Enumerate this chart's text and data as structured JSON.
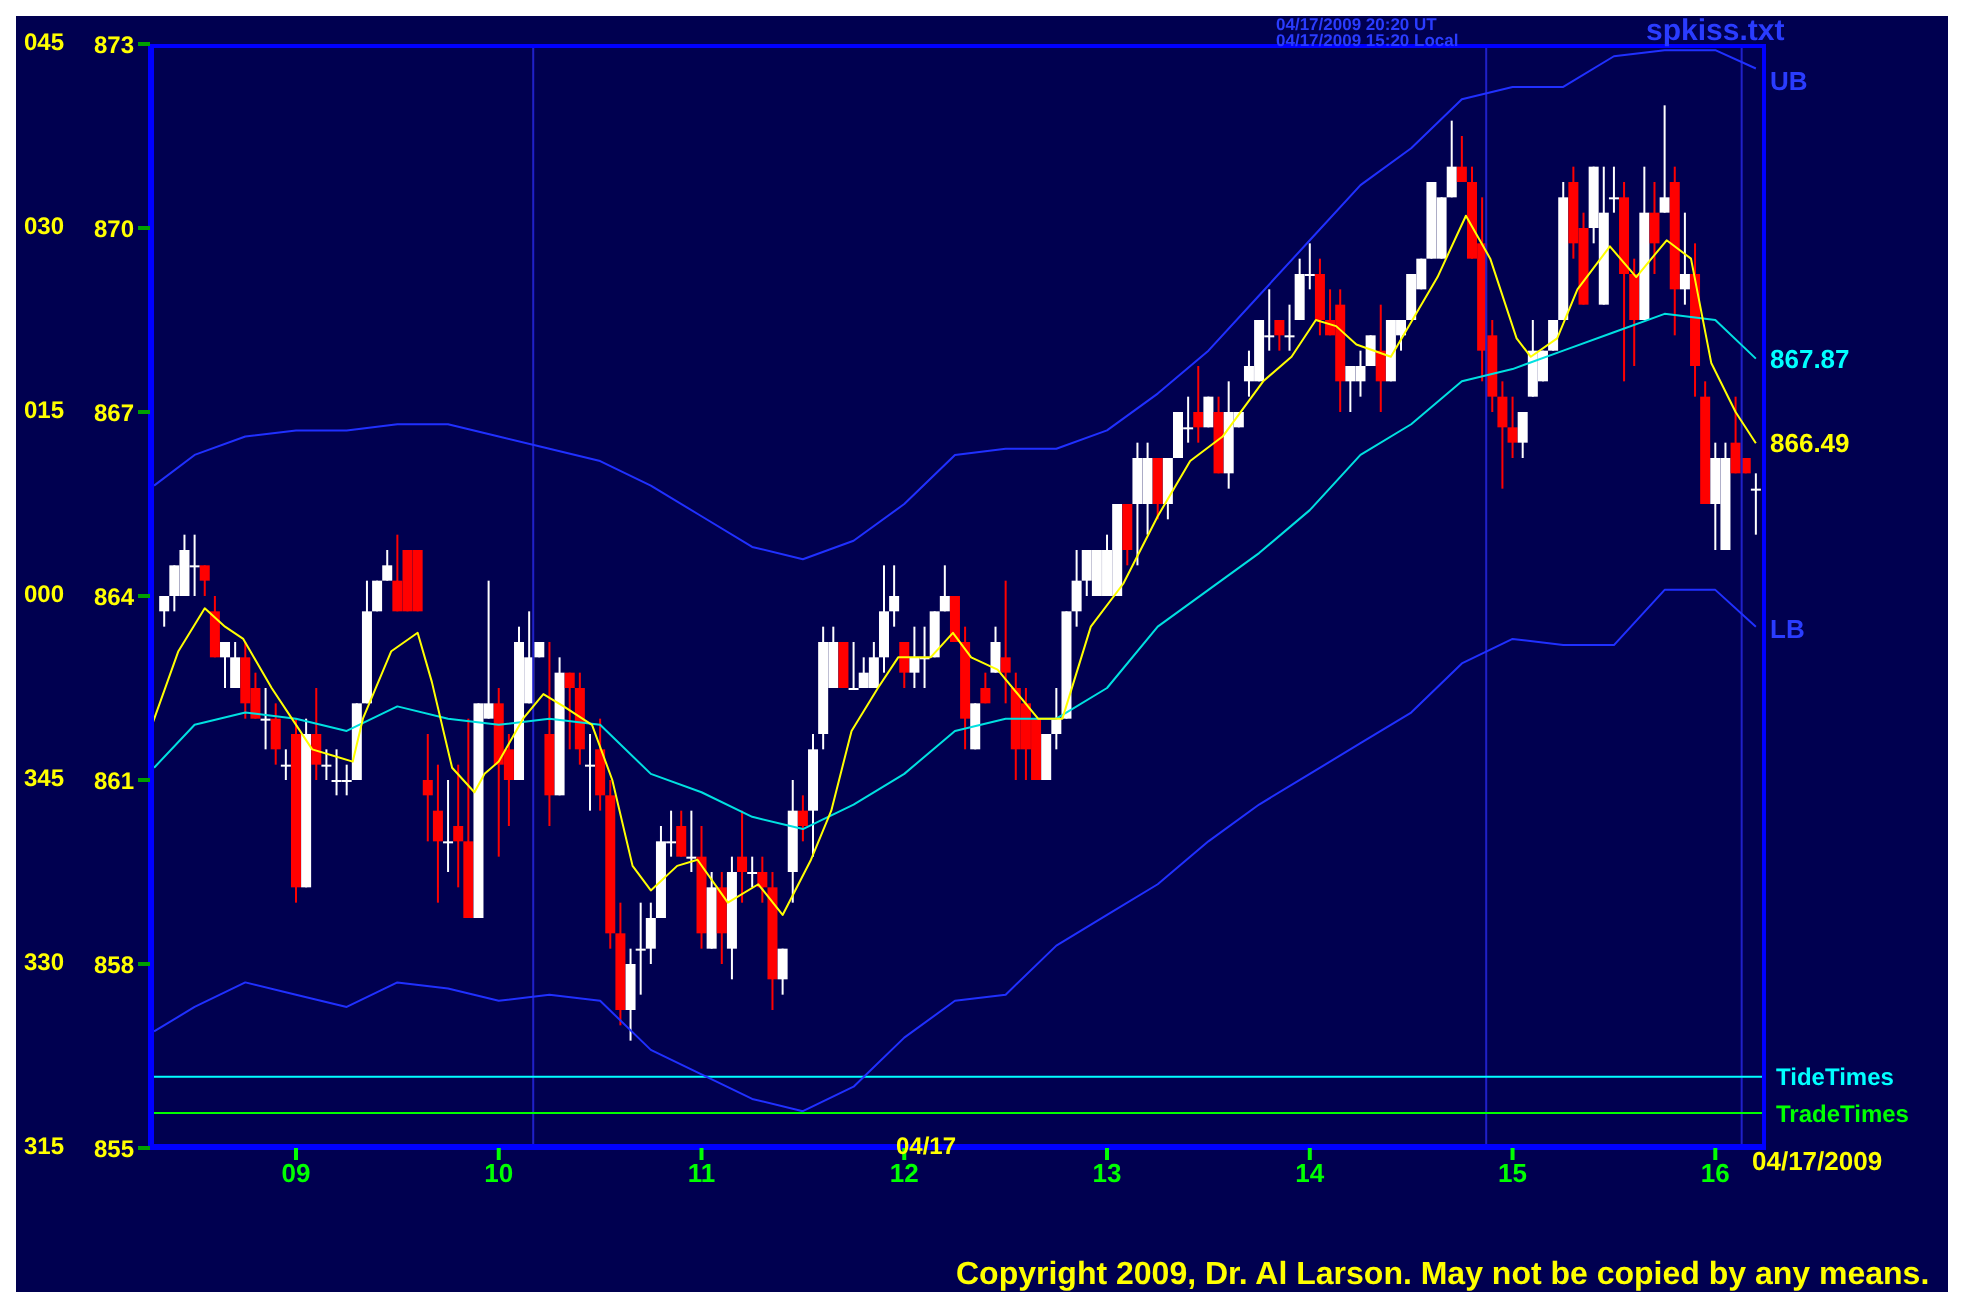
{
  "chart_data": {
    "type": "candlestick",
    "x": [
      8.35,
      8.4,
      8.45,
      8.5,
      8.55,
      8.6,
      8.65,
      8.7,
      8.75,
      8.8,
      8.85,
      8.9,
      8.95,
      9,
      9.05,
      9.1,
      9.15,
      9.2,
      9.25,
      9.3,
      9.35,
      9.4,
      9.45,
      9.5,
      9.55,
      9.6,
      9.65,
      9.7,
      9.75,
      9.8,
      9.85,
      9.9,
      9.95,
      10,
      10.05,
      10.1,
      10.15,
      10.2,
      10.25,
      10.3,
      10.35,
      10.4,
      10.45,
      10.5,
      10.55,
      10.6,
      10.65,
      10.7,
      10.75,
      10.8,
      10.85,
      10.9,
      10.95,
      11,
      11.05,
      11.1,
      11.15,
      11.2,
      11.25,
      11.3,
      11.35,
      11.4,
      11.45,
      11.5,
      11.55,
      11.6,
      11.65,
      11.7,
      11.75,
      11.8,
      11.85,
      11.9,
      11.95,
      12,
      12.05,
      12.1,
      12.15,
      12.2,
      12.25,
      12.3,
      12.35,
      12.4,
      12.45,
      12.5,
      12.55,
      12.6,
      12.65,
      12.7,
      12.75,
      12.8,
      12.85,
      12.9,
      12.95,
      13,
      13.05,
      13.1,
      13.15,
      13.2,
      13.25,
      13.3,
      13.35,
      13.4,
      13.45,
      13.5,
      13.55,
      13.6,
      13.65,
      13.7,
      13.75,
      13.8,
      13.85,
      13.9,
      13.95,
      14,
      14.05,
      14.1,
      14.15,
      14.2,
      14.25,
      14.3,
      14.35,
      14.4,
      14.45,
      14.5,
      14.55,
      14.6,
      14.65,
      14.7,
      14.75,
      14.8,
      14.85,
      14.9,
      14.95,
      15,
      15.05,
      15.1,
      15.15,
      15.2,
      15.25,
      15.3,
      15.35,
      15.4,
      15.45,
      15.5,
      15.55,
      15.6,
      15.65,
      15.7,
      15.75,
      15.8,
      15.85,
      15.9,
      15.95,
      16,
      16.05,
      16.1,
      16.15,
      16.2
    ],
    "ohlc": [
      [
        863.75,
        864.0,
        863.5,
        864.0
      ],
      [
        864.0,
        864.5,
        863.75,
        864.5
      ],
      [
        864.0,
        865.0,
        864.0,
        864.75
      ],
      [
        864.5,
        865.0,
        864.0,
        864.5
      ],
      [
        864.5,
        864.5,
        864.0,
        864.25
      ],
      [
        863.75,
        864.0,
        863.0,
        863.0
      ],
      [
        863.0,
        863.25,
        862.5,
        863.25
      ],
      [
        862.5,
        863.25,
        862.5,
        863.0
      ],
      [
        863.0,
        863.25,
        862.0,
        862.25
      ],
      [
        862.5,
        862.75,
        862.0,
        862.0
      ],
      [
        862.0,
        862.5,
        861.5,
        862.0
      ],
      [
        862.0,
        862.25,
        861.25,
        861.5
      ],
      [
        861.25,
        861.5,
        861.0,
        861.25
      ],
      [
        861.75,
        862.0,
        859.0,
        859.25
      ],
      [
        859.25,
        862.0,
        859.25,
        861.75
      ],
      [
        861.75,
        862.5,
        861.0,
        861.25
      ],
      [
        861.25,
        861.5,
        861.0,
        861.25
      ],
      [
        861.0,
        861.5,
        860.75,
        861.0
      ],
      [
        861.0,
        861.25,
        860.75,
        861.0
      ],
      [
        861.0,
        862.25,
        861.0,
        862.25
      ],
      [
        862.25,
        864.25,
        862.25,
        863.75
      ],
      [
        863.75,
        864.25,
        863.75,
        864.25
      ],
      [
        864.25,
        864.75,
        864.25,
        864.5
      ],
      [
        864.25,
        865.0,
        863.75,
        863.75
      ],
      [
        864.75,
        864.75,
        863.75,
        863.75
      ],
      [
        864.75,
        864.75,
        863.75,
        863.75
      ],
      [
        861.0,
        861.75,
        860.0,
        860.75
      ],
      [
        860.5,
        861.25,
        859.0,
        860.0
      ],
      [
        860.0,
        861.0,
        859.5,
        860.0
      ],
      [
        860.25,
        861.25,
        859.25,
        860.0
      ],
      [
        860.0,
        862.0,
        858.75,
        858.75
      ],
      [
        858.75,
        862.25,
        858.75,
        862.25
      ],
      [
        862.0,
        864.25,
        862.0,
        862.25
      ],
      [
        862.25,
        862.5,
        859.75,
        861.25
      ],
      [
        861.5,
        861.75,
        860.25,
        861.0
      ],
      [
        861.0,
        863.5,
        861.0,
        863.25
      ],
      [
        862.25,
        863.75,
        862.25,
        863.0
      ],
      [
        863.0,
        863.25,
        863.0,
        863.25
      ],
      [
        861.75,
        863.25,
        860.25,
        860.75
      ],
      [
        860.75,
        863.0,
        860.75,
        862.75
      ],
      [
        862.75,
        862.75,
        861.5,
        862.5
      ],
      [
        862.5,
        862.75,
        861.25,
        861.5
      ],
      [
        861.25,
        861.75,
        860.5,
        861.25
      ],
      [
        861.5,
        862.0,
        860.5,
        860.75
      ],
      [
        860.75,
        861.0,
        858.25,
        858.5
      ],
      [
        858.5,
        859.0,
        857.0,
        857.25
      ],
      [
        857.25,
        858.25,
        856.75,
        858.0
      ],
      [
        858.25,
        859.0,
        857.5,
        858.25
      ],
      [
        858.25,
        859.0,
        858.0,
        858.75
      ],
      [
        858.75,
        860.25,
        858.75,
        860.0
      ],
      [
        860.0,
        860.5,
        859.75,
        860.0
      ],
      [
        860.25,
        860.5,
        859.75,
        859.75
      ],
      [
        859.75,
        860.5,
        859.5,
        859.75
      ],
      [
        859.75,
        860.25,
        858.25,
        858.5
      ],
      [
        858.25,
        859.5,
        858.25,
        859.25
      ],
      [
        859.25,
        859.5,
        858.0,
        858.5
      ],
      [
        858.25,
        859.75,
        857.75,
        859.5
      ],
      [
        859.75,
        860.5,
        859.0,
        859.5
      ],
      [
        859.5,
        859.75,
        859.25,
        859.5
      ],
      [
        859.5,
        859.75,
        859.0,
        859.25
      ],
      [
        859.25,
        859.5,
        857.25,
        857.75
      ],
      [
        857.75,
        858.25,
        857.5,
        858.25
      ],
      [
        859.5,
        861.0,
        859.0,
        860.5
      ],
      [
        860.5,
        860.75,
        860.0,
        860.25
      ],
      [
        860.5,
        861.75,
        859.75,
        861.5
      ],
      [
        861.75,
        863.5,
        861.5,
        863.25
      ],
      [
        862.5,
        863.5,
        862.5,
        863.25
      ],
      [
        863.25,
        863.25,
        862.5,
        862.5
      ],
      [
        862.5,
        863.25,
        862.5,
        862.5
      ],
      [
        862.5,
        863.0,
        862.5,
        862.75
      ],
      [
        862.5,
        863.25,
        862.5,
        863.0
      ],
      [
        863.0,
        864.5,
        862.75,
        863.75
      ],
      [
        863.75,
        864.5,
        863.5,
        864.0
      ],
      [
        863.25,
        863.25,
        862.5,
        862.75
      ],
      [
        862.75,
        863.5,
        862.5,
        863.0
      ],
      [
        863.0,
        863.5,
        862.5,
        863.0
      ],
      [
        863.0,
        863.75,
        863.0,
        863.75
      ],
      [
        863.75,
        864.5,
        863.75,
        864.0
      ],
      [
        864.0,
        864.0,
        863.25,
        863.25
      ],
      [
        863.25,
        863.5,
        861.5,
        862.0
      ],
      [
        861.5,
        862.25,
        861.5,
        862.25
      ],
      [
        862.5,
        862.75,
        862.25,
        862.25
      ],
      [
        862.75,
        863.5,
        862.75,
        863.25
      ],
      [
        863.0,
        864.25,
        862.25,
        862.75
      ],
      [
        862.5,
        862.75,
        861.0,
        861.5
      ],
      [
        862.25,
        862.5,
        861.0,
        861.5
      ],
      [
        862.0,
        862.0,
        861.0,
        861.0
      ],
      [
        861.0,
        861.75,
        861.0,
        861.75
      ],
      [
        861.75,
        862.5,
        861.5,
        862.0
      ],
      [
        862.0,
        863.75,
        862.0,
        863.75
      ],
      [
        863.75,
        864.75,
        863.5,
        864.25
      ],
      [
        864.25,
        864.75,
        864.0,
        864.75
      ],
      [
        864.0,
        864.75,
        864.0,
        864.75
      ],
      [
        864.0,
        865.0,
        864.0,
        864.75
      ],
      [
        864.0,
        865.5,
        864.0,
        865.5
      ],
      [
        865.5,
        865.5,
        864.5,
        864.75
      ],
      [
        865.5,
        866.5,
        864.5,
        866.25
      ],
      [
        865.5,
        866.5,
        865.0,
        866.25
      ],
      [
        866.25,
        866.25,
        865.25,
        865.5
      ],
      [
        865.5,
        866.25,
        865.25,
        866.25
      ],
      [
        866.25,
        867.0,
        866.25,
        867.0
      ],
      [
        866.75,
        867.25,
        866.5,
        866.75
      ],
      [
        867.0,
        867.75,
        866.5,
        866.75
      ],
      [
        866.75,
        867.25,
        866.75,
        867.25
      ],
      [
        867.0,
        867.25,
        866.0,
        866.0
      ],
      [
        866.0,
        867.5,
        865.75,
        867.0
      ],
      [
        866.75,
        867.0,
        866.75,
        867.0
      ],
      [
        867.5,
        868.0,
        867.25,
        867.75
      ],
      [
        867.5,
        868.5,
        867.5,
        868.5
      ],
      [
        868.25,
        869.0,
        868.0,
        868.25
      ],
      [
        868.5,
        868.5,
        868.0,
        868.25
      ],
      [
        868.25,
        868.75,
        868.0,
        868.25
      ],
      [
        868.5,
        869.5,
        868.5,
        869.25
      ],
      [
        869.25,
        869.75,
        869.0,
        869.25
      ],
      [
        869.25,
        869.5,
        868.25,
        868.5
      ],
      [
        868.5,
        869.0,
        868.25,
        868.25
      ],
      [
        868.75,
        869.0,
        867.0,
        867.5
      ],
      [
        867.5,
        867.75,
        867.0,
        867.75
      ],
      [
        867.5,
        868.0,
        867.25,
        867.75
      ],
      [
        867.75,
        868.25,
        867.75,
        868.25
      ],
      [
        868.0,
        868.75,
        867.0,
        867.5
      ],
      [
        867.5,
        868.5,
        867.5,
        868.5
      ],
      [
        868.25,
        868.5,
        868.0,
        868.5
      ],
      [
        868.5,
        869.25,
        868.5,
        869.25
      ],
      [
        869.0,
        869.5,
        869.0,
        869.5
      ],
      [
        869.5,
        870.75,
        869.5,
        870.75
      ],
      [
        869.5,
        870.5,
        869.5,
        870.5
      ],
      [
        870.5,
        871.75,
        870.5,
        871.0
      ],
      [
        871.0,
        871.5,
        870.75,
        870.75
      ],
      [
        870.75,
        871.0,
        869.5,
        869.5
      ],
      [
        869.75,
        870.5,
        867.5,
        868.0
      ],
      [
        868.25,
        868.5,
        867.0,
        867.25
      ],
      [
        867.25,
        867.5,
        865.75,
        866.75
      ],
      [
        866.75,
        867.25,
        866.25,
        866.5
      ],
      [
        866.5,
        867.0,
        866.25,
        867.0
      ],
      [
        867.25,
        868.5,
        867.25,
        868.0
      ],
      [
        867.5,
        868.0,
        867.5,
        868.0
      ],
      [
        868.0,
        868.5,
        868.0,
        868.5
      ],
      [
        868.5,
        870.75,
        868.5,
        870.5
      ],
      [
        870.75,
        871.0,
        869.5,
        869.75
      ],
      [
        870.0,
        870.25,
        868.75,
        868.75
      ],
      [
        870.0,
        871.0,
        869.75,
        871.0
      ],
      [
        868.75,
        871.0,
        868.75,
        870.25
      ],
      [
        870.5,
        871.0,
        870.25,
        870.5
      ],
      [
        870.5,
        870.75,
        867.5,
        869.25
      ],
      [
        869.25,
        869.5,
        867.75,
        868.5
      ],
      [
        868.5,
        871.0,
        868.5,
        870.25
      ],
      [
        870.25,
        870.75,
        869.25,
        869.75
      ],
      [
        870.25,
        872.0,
        870.25,
        870.5
      ],
      [
        870.75,
        871.0,
        868.25,
        869.0
      ],
      [
        869.0,
        870.25,
        868.75,
        869.25
      ],
      [
        869.25,
        869.75,
        867.25,
        867.75
      ],
      [
        867.25,
        867.5,
        865.5,
        865.5
      ],
      [
        865.5,
        866.5,
        864.75,
        866.25
      ],
      [
        864.75,
        866.5,
        864.75,
        866.25
      ],
      [
        866.5,
        867.25,
        866.0,
        866.0
      ],
      [
        866.25,
        866.25,
        866.0,
        866.0
      ],
      [
        865.75,
        866.0,
        865.0,
        865.75
      ]
    ],
    "series": [
      {
        "type": "line",
        "color": "#2030ff",
        "x": [
          8.3,
          8.5,
          8.75,
          9,
          9.25,
          9.5,
          9.75,
          10,
          10.25,
          10.5,
          10.75,
          11,
          11.25,
          11.5,
          11.75,
          12,
          12.25,
          12.5,
          12.75,
          13,
          13.25,
          13.5,
          13.75,
          14,
          14.25,
          14.5,
          14.75,
          15,
          15.25,
          15.5,
          15.75,
          16,
          16.2
        ],
        "values": [
          865.8,
          866.3,
          866.6,
          866.7,
          866.7,
          866.8,
          866.8,
          866.6,
          866.4,
          866.2,
          865.8,
          865.3,
          864.8,
          864.6,
          864.9,
          865.5,
          866.3,
          866.4,
          866.4,
          866.7,
          867.3,
          868.0,
          868.9,
          869.8,
          870.7,
          871.3,
          872.1,
          872.3,
          872.3,
          872.8,
          872.9,
          872.9,
          872.6
        ]
      },
      {
        "type": "line",
        "color": "#2030ff",
        "x": [
          8.3,
          8.5,
          8.75,
          9,
          9.25,
          9.5,
          9.75,
          10,
          10.25,
          10.5,
          10.75,
          11,
          11.25,
          11.5,
          11.75,
          12,
          12.25,
          12.5,
          12.75,
          13,
          13.25,
          13.5,
          13.75,
          14,
          14.25,
          14.5,
          14.75,
          15,
          15.25,
          15.5,
          15.75,
          16,
          16.2
        ],
        "values": [
          856.9,
          857.3,
          857.7,
          857.5,
          857.3,
          857.7,
          857.6,
          857.4,
          857.5,
          857.4,
          856.6,
          856.2,
          855.8,
          855.6,
          856.0,
          856.8,
          857.4,
          857.5,
          858.3,
          858.8,
          859.3,
          860.0,
          860.6,
          861.1,
          861.6,
          862.1,
          862.9,
          863.3,
          863.2,
          863.2,
          864.1,
          864.1,
          863.5
        ]
      },
      {
        "type": "line",
        "color": "#00e0e0",
        "x": [
          8.3,
          8.5,
          8.75,
          9,
          9.25,
          9.5,
          9.75,
          10,
          10.25,
          10.5,
          10.75,
          11,
          11.25,
          11.5,
          11.75,
          12,
          12.25,
          12.5,
          12.75,
          13,
          13.25,
          13.5,
          13.75,
          14,
          14.25,
          14.5,
          14.75,
          15,
          15.25,
          15.5,
          15.75,
          16,
          16.2
        ],
        "values": [
          861.2,
          861.9,
          862.1,
          862.0,
          861.8,
          862.2,
          862.0,
          861.9,
          862.0,
          861.9,
          861.1,
          860.8,
          860.4,
          860.2,
          860.6,
          861.1,
          861.8,
          862.0,
          862.0,
          862.5,
          863.5,
          864.1,
          864.7,
          865.4,
          866.3,
          866.8,
          867.5,
          867.7,
          868.0,
          868.3,
          868.6,
          868.5,
          867.87
        ]
      },
      {
        "type": "line",
        "color": "#ffff00",
        "x": [
          8.29,
          8.42,
          8.55,
          8.65,
          8.74,
          8.88,
          8.98,
          9.08,
          9.18,
          9.28,
          9.33,
          9.47,
          9.6,
          9.67,
          9.77,
          9.88,
          9.93,
          10.0,
          10.12,
          10.22,
          10.32,
          10.46,
          10.56,
          10.66,
          10.75,
          10.88,
          10.98,
          11.13,
          11.28,
          11.4,
          11.54,
          11.64,
          11.74,
          11.87,
          11.97,
          12.13,
          12.24,
          12.33,
          12.46,
          12.66,
          12.78,
          12.92,
          13.08,
          13.25,
          13.41,
          13.57,
          13.77,
          13.91,
          14.03,
          14.13,
          14.23,
          14.4,
          14.63,
          14.77,
          14.89,
          15.02,
          15.09,
          15.22,
          15.32,
          15.48,
          15.61,
          15.76,
          15.88,
          15.98,
          16.1,
          16.2
        ],
        "values": [
          861.9,
          863.1,
          863.8,
          863.5,
          863.3,
          862.5,
          862.0,
          861.5,
          861.4,
          861.3,
          862.0,
          863.1,
          863.4,
          862.6,
          861.2,
          860.8,
          861.1,
          861.3,
          862.0,
          862.4,
          862.2,
          861.9,
          861.0,
          859.6,
          859.2,
          859.6,
          859.7,
          859.0,
          859.3,
          858.8,
          859.7,
          860.5,
          861.8,
          862.5,
          863.0,
          863.0,
          863.4,
          863.0,
          862.8,
          862.0,
          862.0,
          863.5,
          864.2,
          865.3,
          866.2,
          866.6,
          867.5,
          867.9,
          868.5,
          868.4,
          868.1,
          867.9,
          869.2,
          870.2,
          869.5,
          868.2,
          867.9,
          868.2,
          869.0,
          869.7,
          869.2,
          869.8,
          869.5,
          867.8,
          867.0,
          866.49
        ]
      }
    ],
    "xlim": [
      8.28,
      16.25
    ],
    "ylim": [
      855,
      873
    ],
    "xticks": [
      {
        "value": 9,
        "label": "09"
      },
      {
        "value": 10,
        "label": "10"
      },
      {
        "value": 11,
        "label": "11"
      },
      {
        "value": 12,
        "label": "12"
      },
      {
        "value": 13,
        "label": "13"
      },
      {
        "value": 14,
        "label": "14"
      },
      {
        "value": 15,
        "label": "15"
      },
      {
        "value": 16,
        "label": "16"
      }
    ],
    "yticks": [
      855,
      858,
      861,
      864,
      867,
      870,
      873
    ],
    "ref_lines": [
      {
        "axis": "x",
        "value": 10.17,
        "color": "#2020c8"
      },
      {
        "axis": "x",
        "value": 14.87,
        "color": "#2020c8"
      },
      {
        "axis": "x",
        "value": 16.13,
        "color": "#2020c8"
      },
      {
        "axis": "y",
        "value": 856.16,
        "label": "TideTimes",
        "color": "#00ffff"
      },
      {
        "axis": "y",
        "value": 855.57,
        "label": "TradeTimes",
        "color": "#00ff00"
      }
    ],
    "annotations": [
      "UB",
      "LB",
      "867.87",
      "866.49",
      "04/17",
      "04/17/2009",
      "04/17/2009 20:20 UT",
      "04/17/2009 15:20 Local",
      "spkiss.txt",
      "Copyright 2009, Dr. Al Larson. May not be copied by any means.",
      "315",
      "330",
      "345",
      "000",
      "015",
      "030",
      "045"
    ]
  }
}
